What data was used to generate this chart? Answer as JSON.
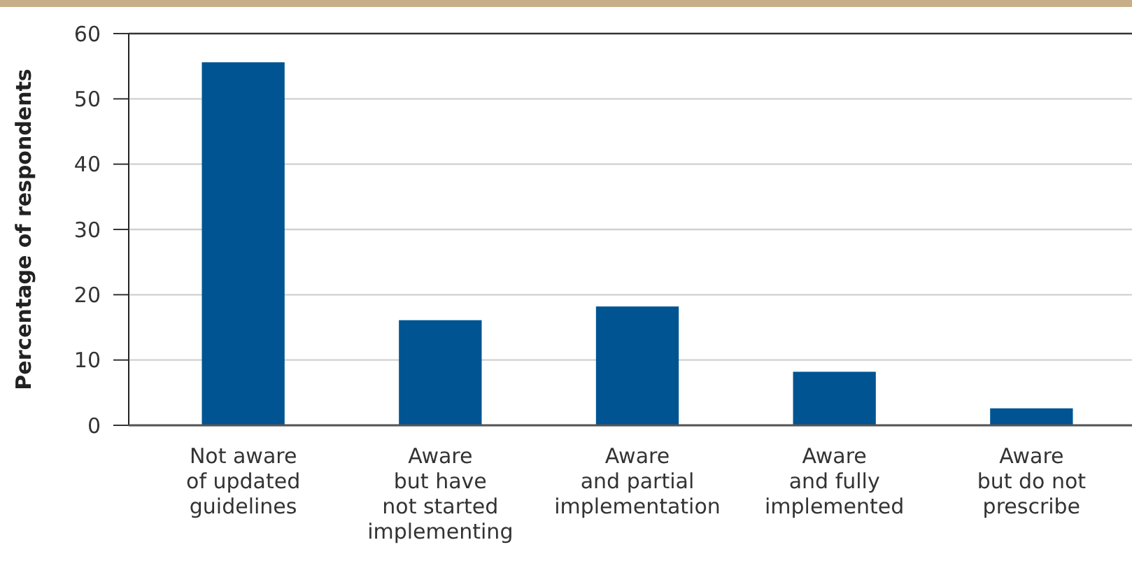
{
  "chart_data": {
    "type": "bar",
    "ylabel": "Percentage of respondents",
    "categories": [
      "Not aware\nof updated\nguidelines",
      "Aware\nbut have\nnot started\nimplementing",
      "Aware\nand partial\nimplementation",
      "Aware\nand fully\nimplemented",
      "Aware\nbut do not\nprescribe"
    ],
    "values": [
      55.6,
      16.1,
      18.2,
      8.2,
      2.6
    ],
    "color": "#005492",
    "ylim": [
      0,
      60
    ],
    "yticks": [
      0,
      10,
      20,
      30,
      40,
      50,
      60
    ],
    "grid": "y"
  }
}
